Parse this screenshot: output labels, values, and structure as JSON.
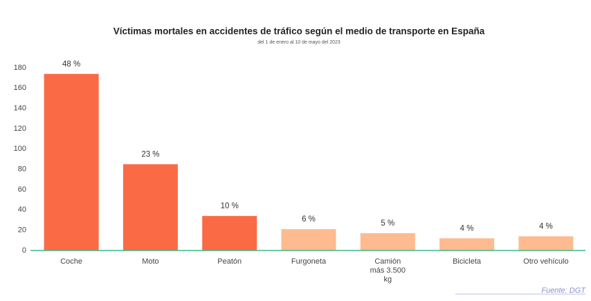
{
  "chart_data": {
    "type": "bar",
    "title": "Víctimas mortales en accidentes de tráfico según el medio de transporte en España",
    "subtitle": "del 1 de enero al 10 de mayo del 2023",
    "categories": [
      "Coche",
      "Moto",
      "Peatón",
      "Furgoneta",
      "Camión\nmás 3.500\nkg",
      "Bicicleta",
      "Otro vehículo"
    ],
    "values": [
      174,
      85,
      34,
      21,
      17,
      12,
      14
    ],
    "share_labels": [
      "48 %",
      "23 %",
      "10 %",
      "6 %",
      "5 %",
      "4 %",
      "4 %"
    ],
    "colors": [
      "#fa6b45",
      "#fa6b45",
      "#fa6b45",
      "#fdbb8f",
      "#fdbb8f",
      "#fdbb8f",
      "#fdbb8f"
    ],
    "ylim": [
      0,
      180
    ],
    "yticks": [
      0,
      20,
      40,
      60,
      80,
      100,
      120,
      140,
      160,
      180
    ],
    "grid": false,
    "source": "Fuente: DGT"
  }
}
